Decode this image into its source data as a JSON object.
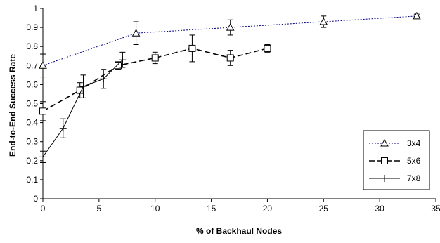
{
  "chart_data": {
    "type": "line",
    "title": "",
    "xlabel": "% of Backhaul Nodes",
    "ylabel": "End-to-End Success Rate",
    "xlim": [
      0,
      35
    ],
    "ylim": [
      0,
      1
    ],
    "x_ticks": [
      "0",
      "5",
      "10",
      "15",
      "20",
      "25",
      "30",
      "35"
    ],
    "y_ticks": [
      "0",
      "0.1",
      "0.2",
      "0.3",
      "0.4",
      "0.5",
      "0.6",
      "0.7",
      "0.8",
      "0.9",
      "1"
    ],
    "grid": false,
    "legend_position": "right",
    "series": [
      {
        "name": "3x4",
        "marker": "triangle",
        "line_style": "dotted",
        "color": "#000080",
        "points": [
          {
            "x": 0,
            "y": 0.7,
            "err": 0.06
          },
          {
            "x": 8.3,
            "y": 0.87,
            "err": 0.06
          },
          {
            "x": 16.7,
            "y": 0.9,
            "err": 0.04
          },
          {
            "x": 25,
            "y": 0.93,
            "err": 0.03
          },
          {
            "x": 33.3,
            "y": 0.96,
            "err": 0.01
          }
        ]
      },
      {
        "name": "5x6",
        "marker": "square",
        "line_style": "dashed",
        "color": "#000000",
        "points": [
          {
            "x": 0,
            "y": 0.46,
            "err": 0.05
          },
          {
            "x": 3.3,
            "y": 0.57,
            "err": 0.04
          },
          {
            "x": 6.7,
            "y": 0.7,
            "err": 0.02
          },
          {
            "x": 10,
            "y": 0.74,
            "err": 0.03
          },
          {
            "x": 13.3,
            "y": 0.79,
            "err": 0.07
          },
          {
            "x": 16.7,
            "y": 0.74,
            "err": 0.04
          },
          {
            "x": 20,
            "y": 0.79,
            "err": 0.02
          }
        ]
      },
      {
        "name": "7x8",
        "marker": "plus",
        "line_style": "solid",
        "color": "#000000",
        "points": [
          {
            "x": 0,
            "y": 0.22,
            "err": 0.03
          },
          {
            "x": 1.8,
            "y": 0.37,
            "err": 0.05
          },
          {
            "x": 3.6,
            "y": 0.59,
            "err": 0.06
          },
          {
            "x": 5.4,
            "y": 0.63,
            "err": 0.05
          },
          {
            "x": 7.1,
            "y": 0.73,
            "err": 0.04
          }
        ]
      }
    ]
  }
}
